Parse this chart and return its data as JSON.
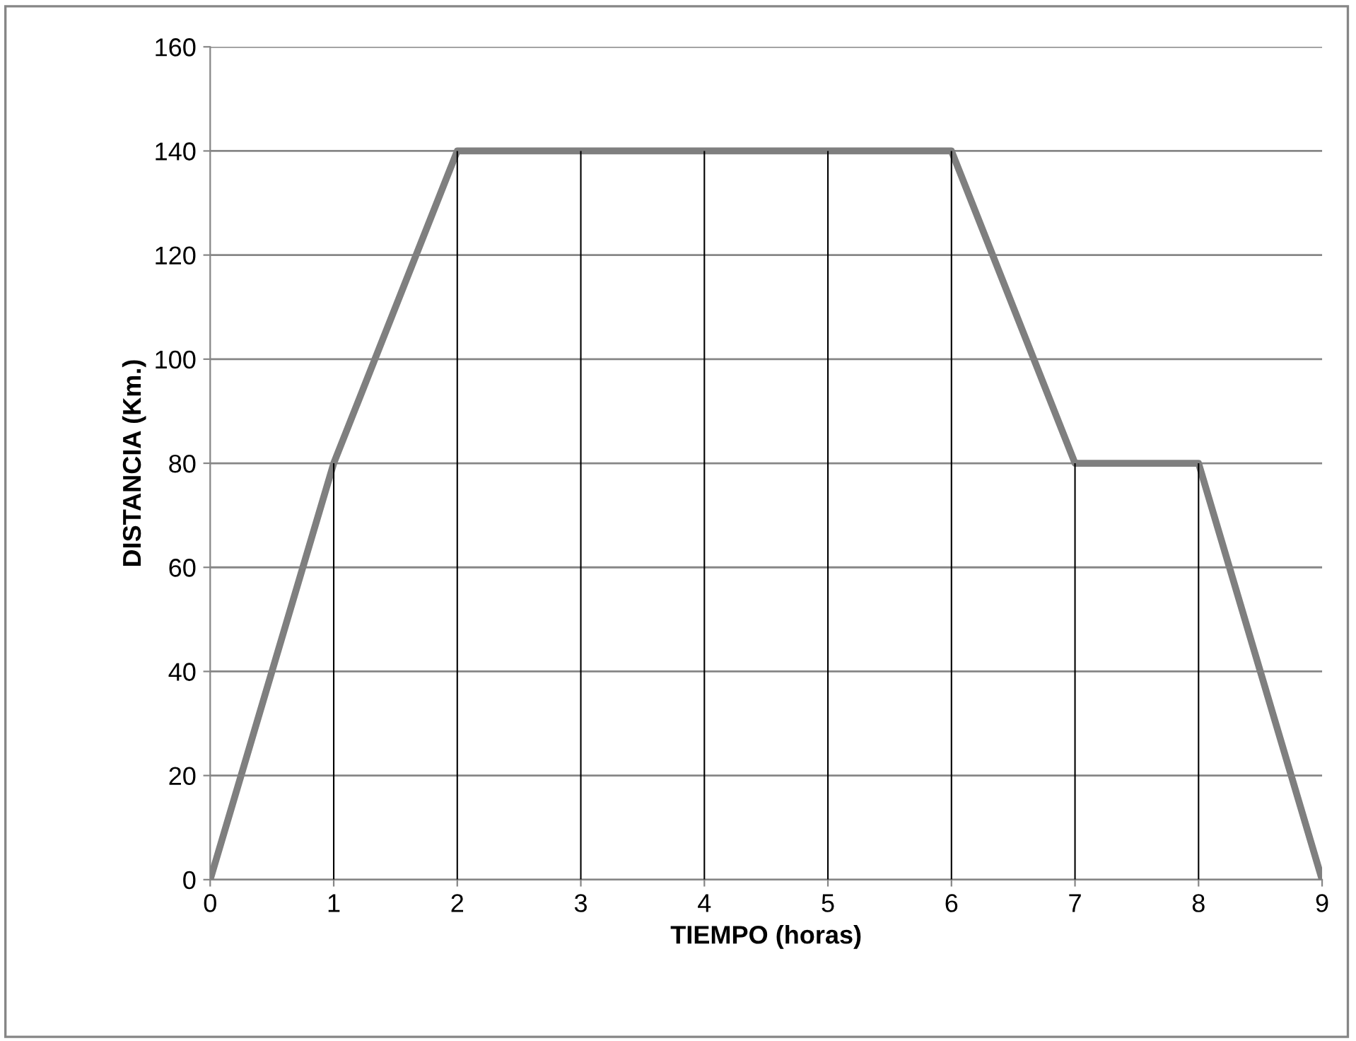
{
  "chart_data": {
    "type": "line",
    "xlabel": "TIEMPO (horas)",
    "ylabel": "DISTANCIA (Km.)",
    "x": [
      0,
      1,
      2,
      3,
      4,
      5,
      6,
      7,
      8,
      9
    ],
    "series": [
      {
        "color": "#7f7f7f",
        "values": [
          0,
          80,
          140,
          140,
          140,
          140,
          140,
          80,
          80,
          0
        ]
      },
      {
        "type": "bar",
        "color": "#000000",
        "x": [
          1,
          2,
          3,
          4,
          5,
          6,
          7,
          8
        ],
        "values": [
          80,
          140,
          140,
          140,
          140,
          140,
          80,
          80
        ]
      }
    ],
    "xlim": [
      0,
      9
    ],
    "xticks": [
      0,
      1,
      2,
      3,
      4,
      5,
      6,
      7,
      8,
      9
    ],
    "ylim": [
      0,
      160
    ],
    "yticks": [
      0,
      20,
      40,
      60,
      80,
      100,
      120,
      140,
      160
    ],
    "grid": "y",
    "marker": "none",
    "line_style": "solid"
  }
}
